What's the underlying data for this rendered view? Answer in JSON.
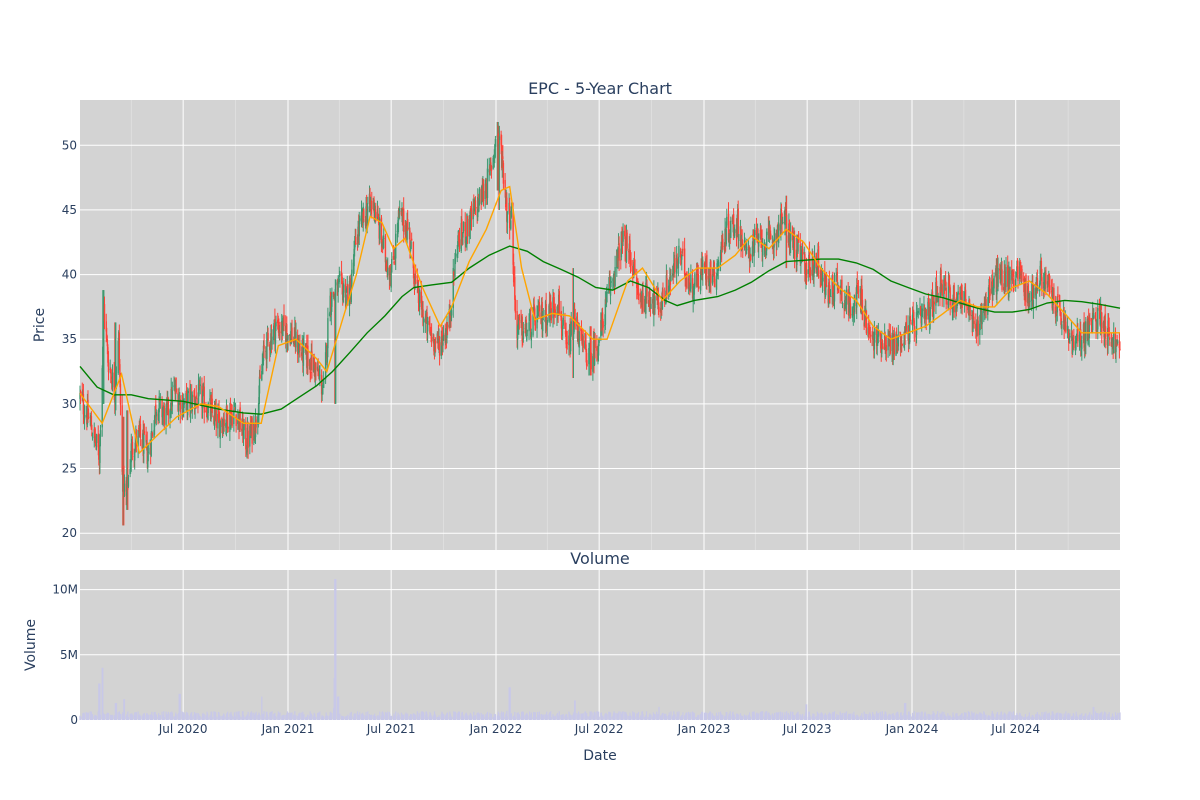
{
  "chart_data": [
    {
      "type": "candlestick",
      "title": "EPC - 5-Year Chart",
      "ylabel": "Price",
      "ylim": [
        18.7,
        53.5
      ],
      "yticks": [
        20,
        25,
        30,
        35,
        40,
        45,
        50
      ],
      "xrange": [
        "2020-01-02",
        "2024-12-31"
      ],
      "grid": true,
      "legend": "none",
      "colors": {
        "up": "#3d9970",
        "down": "#ff4136",
        "ma_short": "#ffa500",
        "ma_long": "#008000",
        "background": "#d3d3d3",
        "grid": "#ffffff"
      },
      "price_keypoints": [
        [
          "2020-01-02",
          30.5
        ],
        [
          "2020-01-20",
          28.5
        ],
        [
          "2020-02-05",
          26.0
        ],
        [
          "2020-02-13",
          37.5
        ],
        [
          "2020-02-20",
          33.5
        ],
        [
          "2020-03-03",
          31.0
        ],
        [
          "2020-03-10",
          35.0
        ],
        [
          "2020-03-16",
          24.5
        ],
        [
          "2020-03-23",
          22.5
        ],
        [
          "2020-04-01",
          26.5
        ],
        [
          "2020-04-15",
          27.5
        ],
        [
          "2020-05-01",
          26.0
        ],
        [
          "2020-05-15",
          30.0
        ],
        [
          "2020-06-01",
          29.0
        ],
        [
          "2020-06-15",
          31.0
        ],
        [
          "2020-07-01",
          30.0
        ],
        [
          "2020-08-01",
          30.5
        ],
        [
          "2020-09-01",
          28.5
        ],
        [
          "2020-10-01",
          29.5
        ],
        [
          "2020-10-20",
          27.0
        ],
        [
          "2020-11-05",
          28.5
        ],
        [
          "2020-11-20",
          34.0
        ],
        [
          "2020-12-10",
          36.0
        ],
        [
          "2021-01-05",
          35.5
        ],
        [
          "2021-01-25",
          34.0
        ],
        [
          "2021-02-15",
          33.0
        ],
        [
          "2021-03-05",
          31.0
        ],
        [
          "2021-03-15",
          38.0
        ],
        [
          "2021-04-01",
          39.0
        ],
        [
          "2021-04-20",
          38.5
        ],
        [
          "2021-05-01",
          43.0
        ],
        [
          "2021-05-20",
          45.0
        ],
        [
          "2021-06-01",
          45.5
        ],
        [
          "2021-06-10",
          43.5
        ],
        [
          "2021-06-20",
          41.5
        ],
        [
          "2021-07-01",
          40.0
        ],
        [
          "2021-07-15",
          44.5
        ],
        [
          "2021-08-01",
          43.5
        ],
        [
          "2021-08-15",
          38.5
        ],
        [
          "2021-09-01",
          36.0
        ],
        [
          "2021-09-20",
          34.5
        ],
        [
          "2021-10-10",
          36.0
        ],
        [
          "2021-10-25",
          42.5
        ],
        [
          "2021-11-10",
          43.5
        ],
        [
          "2021-12-01",
          45.5
        ],
        [
          "2021-12-20",
          47.5
        ],
        [
          "2022-01-03",
          51.0
        ],
        [
          "2022-01-12",
          49.0
        ],
        [
          "2022-01-20",
          45.0
        ],
        [
          "2022-01-28",
          44.5
        ],
        [
          "2022-02-05",
          36.0
        ],
        [
          "2022-02-20",
          35.5
        ],
        [
          "2022-03-10",
          36.5
        ],
        [
          "2022-04-01",
          37.0
        ],
        [
          "2022-04-20",
          38.0
        ],
        [
          "2022-05-05",
          34.0
        ],
        [
          "2022-05-20",
          36.5
        ],
        [
          "2022-06-01",
          34.5
        ],
        [
          "2022-06-15",
          33.5
        ],
        [
          "2022-07-01",
          35.0
        ],
        [
          "2022-07-20",
          39.0
        ],
        [
          "2022-08-10",
          42.5
        ],
        [
          "2022-08-25",
          41.5
        ],
        [
          "2022-09-10",
          38.0
        ],
        [
          "2022-09-25",
          38.5
        ],
        [
          "2022-10-15",
          37.5
        ],
        [
          "2022-11-01",
          39.5
        ],
        [
          "2022-11-20",
          41.5
        ],
        [
          "2022-12-10",
          39.0
        ],
        [
          "2023-01-01",
          40.5
        ],
        [
          "2023-01-20",
          40.0
        ],
        [
          "2023-02-10",
          43.5
        ],
        [
          "2023-03-01",
          44.0
        ],
        [
          "2023-03-15",
          41.5
        ],
        [
          "2023-04-01",
          42.5
        ],
        [
          "2023-05-01",
          42.5
        ],
        [
          "2023-05-20",
          44.5
        ],
        [
          "2023-06-10",
          42.0
        ],
        [
          "2023-07-01",
          40.5
        ],
        [
          "2023-07-20",
          41.0
        ],
        [
          "2023-08-05",
          38.5
        ],
        [
          "2023-08-25",
          39.5
        ],
        [
          "2023-09-10",
          37.5
        ],
        [
          "2023-10-01",
          38.5
        ],
        [
          "2023-10-20",
          35.0
        ],
        [
          "2023-11-10",
          35.0
        ],
        [
          "2023-12-01",
          34.5
        ],
        [
          "2024-01-01",
          36.0
        ],
        [
          "2024-02-01",
          37.0
        ],
        [
          "2024-02-20",
          39.5
        ],
        [
          "2024-03-10",
          38.0
        ],
        [
          "2024-04-01",
          38.5
        ],
        [
          "2024-04-20",
          35.5
        ],
        [
          "2024-05-10",
          38.0
        ],
        [
          "2024-06-01",
          40.0
        ],
        [
          "2024-06-20",
          39.5
        ],
        [
          "2024-07-05",
          40.5
        ],
        [
          "2024-07-25",
          38.0
        ],
        [
          "2024-08-15",
          40.0
        ],
        [
          "2024-09-01",
          38.5
        ],
        [
          "2024-09-20",
          36.5
        ],
        [
          "2024-10-10",
          34.5
        ],
        [
          "2024-11-01",
          35.5
        ],
        [
          "2024-11-25",
          37.0
        ],
        [
          "2024-12-10",
          35.5
        ],
        [
          "2024-12-31",
          34.0
        ]
      ],
      "spikes": [
        [
          "2020-02-12",
          38.8,
          30.0
        ],
        [
          "2020-03-04",
          36.3,
          29.5
        ],
        [
          "2020-03-18",
          29.0,
          20.6
        ],
        [
          "2020-03-25",
          29.5,
          21.8
        ],
        [
          "2022-01-04",
          51.8,
          46.5
        ],
        [
          "2022-01-07",
          51.5,
          45.0
        ],
        [
          "2022-05-16",
          40.5,
          32.0
        ],
        [
          "2022-06-16",
          36.0,
          32.2
        ],
        [
          "2023-05-26",
          46.1,
          40.5
        ],
        [
          "2021-03-25",
          38.5,
          30.0
        ]
      ],
      "ma_short_points": [
        [
          "2020-01-02",
          30.8
        ],
        [
          "2020-02-10",
          28.5
        ],
        [
          "2020-03-15",
          32.3
        ],
        [
          "2020-04-15",
          26.2
        ],
        [
          "2020-05-15",
          27.5
        ],
        [
          "2020-06-20",
          29.0
        ],
        [
          "2020-08-01",
          30.0
        ],
        [
          "2020-09-01",
          29.8
        ],
        [
          "2020-10-15",
          28.5
        ],
        [
          "2020-11-15",
          28.5
        ],
        [
          "2020-12-15",
          34.5
        ],
        [
          "2021-01-15",
          35.0
        ],
        [
          "2021-02-20",
          33.5
        ],
        [
          "2021-03-10",
          32.5
        ],
        [
          "2021-04-10",
          37.0
        ],
        [
          "2021-05-01",
          40.0
        ],
        [
          "2021-05-25",
          44.5
        ],
        [
          "2021-06-15",
          44.0
        ],
        [
          "2021-07-05",
          42.0
        ],
        [
          "2021-07-25",
          42.8
        ],
        [
          "2021-08-25",
          39.0
        ],
        [
          "2021-09-25",
          36.0
        ],
        [
          "2021-10-15",
          37.5
        ],
        [
          "2021-11-15",
          41.0
        ],
        [
          "2021-12-15",
          43.5
        ],
        [
          "2022-01-10",
          46.5
        ],
        [
          "2022-01-25",
          46.8
        ],
        [
          "2022-02-15",
          40.5
        ],
        [
          "2022-03-10",
          36.5
        ],
        [
          "2022-04-10",
          37.0
        ],
        [
          "2022-05-10",
          36.8
        ],
        [
          "2022-06-20",
          35.0
        ],
        [
          "2022-07-15",
          35.0
        ],
        [
          "2022-08-20",
          39.5
        ],
        [
          "2022-09-15",
          40.5
        ],
        [
          "2022-10-20",
          38.0
        ],
        [
          "2022-11-20",
          39.5
        ],
        [
          "2022-12-20",
          40.5
        ],
        [
          "2023-01-25",
          40.5
        ],
        [
          "2023-02-25",
          41.5
        ],
        [
          "2023-03-25",
          43.0
        ],
        [
          "2023-04-25",
          42.0
        ],
        [
          "2023-05-25",
          43.5
        ],
        [
          "2023-06-25",
          42.5
        ],
        [
          "2023-07-25",
          40.5
        ],
        [
          "2023-08-25",
          39.0
        ],
        [
          "2023-09-25",
          38.0
        ],
        [
          "2023-10-25",
          36.0
        ],
        [
          "2023-11-25",
          35.0
        ],
        [
          "2023-12-25",
          35.5
        ],
        [
          "2024-01-25",
          36.0
        ],
        [
          "2024-02-25",
          37.0
        ],
        [
          "2024-03-25",
          38.0
        ],
        [
          "2024-04-25",
          37.5
        ],
        [
          "2024-05-25",
          37.5
        ],
        [
          "2024-06-25",
          39.0
        ],
        [
          "2024-07-25",
          39.5
        ],
        [
          "2024-08-25",
          38.5
        ],
        [
          "2024-09-25",
          37.0
        ],
        [
          "2024-10-25",
          35.5
        ],
        [
          "2024-11-25",
          35.5
        ],
        [
          "2024-12-15",
          35.5
        ],
        [
          "2024-12-31",
          35.5
        ]
      ],
      "ma_long_points": [
        [
          "2020-01-02",
          32.9
        ],
        [
          "2020-02-01",
          31.3
        ],
        [
          "2020-03-01",
          30.7
        ],
        [
          "2020-04-01",
          30.7
        ],
        [
          "2020-05-01",
          30.4
        ],
        [
          "2020-07-01",
          30.2
        ],
        [
          "2020-09-01",
          29.6
        ],
        [
          "2020-10-15",
          29.3
        ],
        [
          "2020-11-15",
          29.2
        ],
        [
          "2020-12-20",
          29.6
        ],
        [
          "2021-01-20",
          30.5
        ],
        [
          "2021-02-20",
          31.4
        ],
        [
          "2021-03-20",
          32.5
        ],
        [
          "2021-04-20",
          34.0
        ],
        [
          "2021-05-20",
          35.5
        ],
        [
          "2021-06-20",
          36.8
        ],
        [
          "2021-07-20",
          38.3
        ],
        [
          "2021-08-10",
          39.0
        ],
        [
          "2021-09-10",
          39.2
        ],
        [
          "2021-10-15",
          39.4
        ],
        [
          "2021-11-15",
          40.5
        ],
        [
          "2021-12-20",
          41.5
        ],
        [
          "2022-01-25",
          42.2
        ],
        [
          "2022-02-25",
          41.8
        ],
        [
          "2022-03-25",
          41.0
        ],
        [
          "2022-04-25",
          40.4
        ],
        [
          "2022-05-25",
          39.8
        ],
        [
          "2022-06-25",
          39.0
        ],
        [
          "2022-07-25",
          38.8
        ],
        [
          "2022-08-25",
          39.5
        ],
        [
          "2022-09-25",
          39.0
        ],
        [
          "2022-10-25",
          38.0
        ],
        [
          "2022-11-15",
          37.6
        ],
        [
          "2022-12-15",
          38.0
        ],
        [
          "2023-01-25",
          38.3
        ],
        [
          "2023-02-25",
          38.8
        ],
        [
          "2023-03-25",
          39.4
        ],
        [
          "2023-04-25",
          40.3
        ],
        [
          "2023-05-25",
          41.0
        ],
        [
          "2023-06-25",
          41.1
        ],
        [
          "2023-07-25",
          41.2
        ],
        [
          "2023-08-25",
          41.2
        ],
        [
          "2023-09-25",
          40.9
        ],
        [
          "2023-10-25",
          40.4
        ],
        [
          "2023-11-25",
          39.5
        ],
        [
          "2023-12-25",
          39.0
        ],
        [
          "2024-01-25",
          38.5
        ],
        [
          "2024-02-25",
          38.2
        ],
        [
          "2024-03-25",
          37.8
        ],
        [
          "2024-04-25",
          37.4
        ],
        [
          "2024-05-25",
          37.1
        ],
        [
          "2024-06-25",
          37.1
        ],
        [
          "2024-07-25",
          37.3
        ],
        [
          "2024-08-25",
          37.8
        ],
        [
          "2024-09-25",
          38.0
        ],
        [
          "2024-10-25",
          37.9
        ],
        [
          "2024-11-25",
          37.7
        ],
        [
          "2024-12-31",
          37.4
        ]
      ]
    },
    {
      "type": "bar",
      "title": "Volume",
      "xlabel": "Date",
      "ylabel": "Volume",
      "ylim": [
        0,
        11500000
      ],
      "yticks": [
        0,
        5000000,
        10000000
      ],
      "ytick_labels": [
        "0",
        "5M",
        "10M"
      ],
      "xticks": [
        "2020-07-01",
        "2021-01-01",
        "2021-07-01",
        "2022-01-01",
        "2022-07-01",
        "2023-01-01",
        "2023-07-01",
        "2024-01-01",
        "2024-07-01"
      ],
      "xtick_labels": [
        "Jul 2020",
        "Jan 2021",
        "Jul 2021",
        "Jan 2022",
        "Jul 2022",
        "Jan 2023",
        "Jul 2023",
        "Jan 2024",
        "Jul 2024"
      ],
      "grid": true,
      "colors": {
        "bar": "#c8c8e8",
        "background": "#d3d3d3",
        "grid": "#ffffff"
      },
      "volume_spikes": [
        [
          "2020-02-05",
          2800000
        ],
        [
          "2020-02-10",
          4000000
        ],
        [
          "2020-03-05",
          1300000
        ],
        [
          "2020-03-20",
          1600000
        ],
        [
          "2020-06-25",
          2000000
        ],
        [
          "2020-11-15",
          1800000
        ],
        [
          "2021-03-25",
          10800000
        ],
        [
          "2021-03-30",
          1800000
        ],
        [
          "2022-01-25",
          2500000
        ],
        [
          "2022-05-20",
          1500000
        ],
        [
          "2022-10-15",
          1000000
        ],
        [
          "2023-06-30",
          1200000
        ],
        [
          "2023-12-20",
          1300000
        ],
        [
          "2024-11-15",
          1000000
        ]
      ],
      "volume_base": 400000
    }
  ]
}
